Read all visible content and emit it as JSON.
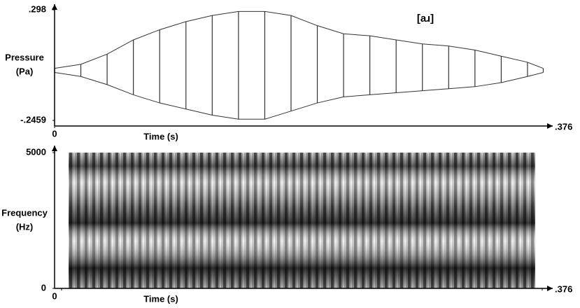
{
  "chart_data": [
    {
      "type": "waveform",
      "annotation": "[aɹ]",
      "ylabel": [
        "Pressure",
        "(Pa)"
      ],
      "xlabel": "Time (s)",
      "xlim": [
        0,
        0.376
      ],
      "xticks": [
        0,
        {
          "value": 0.376,
          "label": ".376"
        }
      ],
      "ylim": [
        -0.2459,
        0.298
      ],
      "yticks": [
        {
          "value": -0.2459,
          "label": "-.2459"
        },
        {
          "value": 0.298,
          "label": ".298"
        }
      ],
      "color": "#333333",
      "x": [
        0,
        0.02,
        0.04,
        0.06,
        0.08,
        0.1,
        0.12,
        0.14,
        0.16,
        0.18,
        0.2,
        0.22,
        0.24,
        0.26,
        0.28,
        0.3,
        0.32,
        0.34,
        0.36,
        0.372
      ],
      "series": [
        {
          "name": "upper",
          "values": [
            0.01,
            0.03,
            0.08,
            0.15,
            0.2,
            0.24,
            0.27,
            0.29,
            0.29,
            0.27,
            0.22,
            0.18,
            0.17,
            0.15,
            0.13,
            0.12,
            0.1,
            0.07,
            0.04,
            0.01
          ]
        },
        {
          "name": "lower",
          "values": [
            -0.01,
            -0.03,
            -0.07,
            -0.12,
            -0.16,
            -0.19,
            -0.22,
            -0.24,
            -0.24,
            -0.2,
            -0.16,
            -0.13,
            -0.12,
            -0.11,
            -0.1,
            -0.09,
            -0.08,
            -0.06,
            -0.03,
            -0.01
          ]
        }
      ]
    },
    {
      "type": "spectrogram",
      "ylabel": [
        "Frequency",
        "(Hz)"
      ],
      "xlabel": "Time (s)",
      "xlim": [
        0,
        0.376
      ],
      "xticks": [
        0,
        {
          "value": 0.376,
          "label": ".376"
        }
      ],
      "ylim": [
        0,
        5000
      ],
      "yticks": [
        0,
        5000
      ]
    }
  ]
}
